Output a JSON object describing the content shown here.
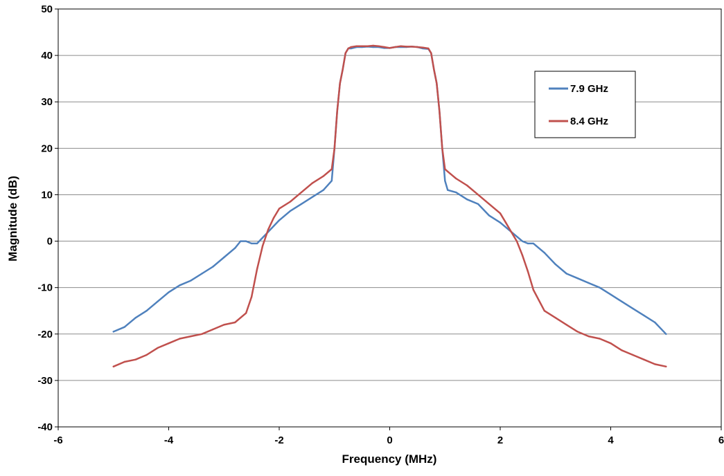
{
  "chart_data": {
    "type": "line",
    "title": "",
    "xlabel": "Frequency (MHz)",
    "ylabel": "Magnitude (dB)",
    "xlim": [
      -6,
      6
    ],
    "ylim": [
      -40,
      50
    ],
    "xticks": [
      -6,
      -4,
      -2,
      0,
      2,
      4,
      6
    ],
    "yticks": [
      -40,
      -30,
      -20,
      -10,
      0,
      10,
      20,
      30,
      40,
      50
    ],
    "grid": "horizontal",
    "legend_position": "upper-right",
    "series": [
      {
        "name": "7.9 GHz",
        "color": "#4f81bd",
        "x": [
          -5.0,
          -4.8,
          -4.6,
          -4.4,
          -4.2,
          -4.0,
          -3.8,
          -3.6,
          -3.4,
          -3.2,
          -3.0,
          -2.8,
          -2.7,
          -2.6,
          -2.5,
          -2.4,
          -2.2,
          -2.0,
          -1.8,
          -1.6,
          -1.4,
          -1.2,
          -1.05,
          -1.0,
          -0.95,
          -0.9,
          -0.85,
          -0.8,
          -0.75,
          -0.7,
          -0.6,
          -0.5,
          -0.4,
          -0.3,
          -0.2,
          -0.1,
          0.0,
          0.1,
          0.2,
          0.3,
          0.4,
          0.5,
          0.6,
          0.7,
          0.75,
          0.8,
          0.85,
          0.9,
          0.95,
          1.0,
          1.05,
          1.2,
          1.4,
          1.6,
          1.8,
          2.0,
          2.2,
          2.4,
          2.5,
          2.6,
          2.8,
          3.0,
          3.2,
          3.4,
          3.6,
          3.8,
          4.0,
          4.2,
          4.4,
          4.6,
          4.8,
          5.0
        ],
        "values": [
          -19.5,
          -18.5,
          -16.5,
          -15.0,
          -13.0,
          -11.0,
          -9.5,
          -8.5,
          -7.0,
          -5.5,
          -3.5,
          -1.5,
          0.0,
          0.0,
          -0.5,
          -0.5,
          2.0,
          4.5,
          6.5,
          8.0,
          9.5,
          11.0,
          13.0,
          20.0,
          28.0,
          34.0,
          37.0,
          40.5,
          41.5,
          41.5,
          41.8,
          41.8,
          41.9,
          41.8,
          41.8,
          41.6,
          41.6,
          41.8,
          41.8,
          41.8,
          41.9,
          41.8,
          41.5,
          41.4,
          40.5,
          37.0,
          34.0,
          28.0,
          20.0,
          13.0,
          11.0,
          10.5,
          9.0,
          8.0,
          5.5,
          4.0,
          2.0,
          0.0,
          -0.5,
          -0.5,
          -2.5,
          -5.0,
          -7.0,
          -8.0,
          -9.0,
          -10.0,
          -11.5,
          -13.0,
          -14.5,
          -16.0,
          -17.5,
          -20.0
        ]
      },
      {
        "name": "8.4 GHz",
        "color": "#c0504d",
        "x": [
          -5.0,
          -4.8,
          -4.6,
          -4.4,
          -4.2,
          -4.0,
          -3.8,
          -3.6,
          -3.4,
          -3.2,
          -3.0,
          -2.8,
          -2.6,
          -2.5,
          -2.4,
          -2.3,
          -2.2,
          -2.1,
          -2.0,
          -1.8,
          -1.6,
          -1.4,
          -1.2,
          -1.05,
          -1.0,
          -0.95,
          -0.9,
          -0.85,
          -0.8,
          -0.75,
          -0.7,
          -0.6,
          -0.5,
          -0.4,
          -0.3,
          -0.2,
          -0.1,
          0.0,
          0.1,
          0.2,
          0.3,
          0.4,
          0.5,
          0.6,
          0.7,
          0.75,
          0.8,
          0.85,
          0.9,
          0.95,
          1.0,
          1.05,
          1.2,
          1.4,
          1.6,
          1.8,
          2.0,
          2.1,
          2.2,
          2.3,
          2.4,
          2.5,
          2.6,
          2.8,
          3.0,
          3.2,
          3.4,
          3.6,
          3.8,
          4.0,
          4.2,
          4.4,
          4.6,
          4.8,
          5.0
        ],
        "values": [
          -27.0,
          -26.0,
          -25.5,
          -24.5,
          -23.0,
          -22.0,
          -21.0,
          -20.5,
          -20.0,
          -19.0,
          -18.0,
          -17.5,
          -15.5,
          -12.0,
          -6.0,
          -1.0,
          2.5,
          5.0,
          7.0,
          8.5,
          10.5,
          12.5,
          14.0,
          15.5,
          20.0,
          28.0,
          34.0,
          37.0,
          40.5,
          41.5,
          41.8,
          42.0,
          42.0,
          42.0,
          42.1,
          42.0,
          41.8,
          41.6,
          41.8,
          42.0,
          41.9,
          41.9,
          41.8,
          41.7,
          41.5,
          40.5,
          37.0,
          34.0,
          28.0,
          20.0,
          15.5,
          15.0,
          13.5,
          12.0,
          10.0,
          8.0,
          6.0,
          4.0,
          2.0,
          0.0,
          -3.0,
          -6.5,
          -10.5,
          -15.0,
          -16.5,
          -18.0,
          -19.5,
          -20.5,
          -21.0,
          -22.0,
          -23.5,
          -24.5,
          -25.5,
          -26.5,
          -27.0
        ]
      }
    ]
  }
}
